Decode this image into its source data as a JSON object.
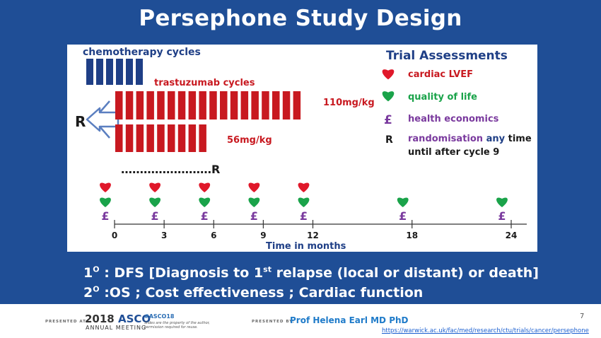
{
  "slide": {
    "title": "Persephone Study Design",
    "outcome_primary_prefix": "1",
    "outcome_primary_sup": "O",
    "outcome_primary_mid": " : DFS [Diagnosis to 1",
    "outcome_primary_sup2": "st",
    "outcome_primary_rest": " relapse (local or distant) or death]",
    "outcome_secondary_prefix": "2",
    "outcome_secondary_sup": "O",
    "outcome_secondary_rest": " :OS ; Cost effectiveness ; Cardiac function"
  },
  "diagram": {
    "chemo_label": "chemotherapy cycles",
    "chemo_cycles": 6,
    "trastuzumab_label": "trastuzumab cycles",
    "arm_long_cycles": 18,
    "arm_short_cycles": 9,
    "arm_long_label": "110mg/kg",
    "arm_short_label": "56mg/kg",
    "randomisation_symbol": "R",
    "randomisation_window": "……………………R",
    "colors": {
      "chemo": "#1f3f86",
      "trastuzumab": "#c81920",
      "heart_red": "#e0182a",
      "heart_green": "#1aa34a",
      "pound": "#7a3a9e",
      "navy": "#1f3f86"
    }
  },
  "legend": {
    "title": "Trial Assessments",
    "items": [
      {
        "icon": "heart-red-icon",
        "label": "cardiac LVEF",
        "color": "#c81920"
      },
      {
        "icon": "heart-green-icon",
        "label": "quality of life",
        "color": "#1aa34a"
      },
      {
        "icon": "pound-icon",
        "symbol": "£",
        "label": "health economics",
        "color": "#7a3a9e"
      },
      {
        "icon": "r-symbol",
        "symbol": "R",
        "label_a": "randomisation",
        "label_b": " any ",
        "label_c": "time",
        "label_line2": "until after cycle 9"
      }
    ]
  },
  "timeline": {
    "axis_label": "Time in months",
    "ticks": [
      "0",
      "3",
      "6",
      "9",
      "12",
      "18",
      "24"
    ],
    "points": [
      {
        "month": 0,
        "cardiac": true,
        "qol": true,
        "econ": true
      },
      {
        "month": 3,
        "cardiac": true,
        "qol": true,
        "econ": true
      },
      {
        "month": 6,
        "cardiac": true,
        "qol": true,
        "econ": true
      },
      {
        "month": 9,
        "cardiac": true,
        "qol": true,
        "econ": true
      },
      {
        "month": 12,
        "cardiac": true,
        "qol": true,
        "econ": true
      },
      {
        "month": 18,
        "cardiac": false,
        "qol": true,
        "econ": true
      },
      {
        "month": 24,
        "cardiac": false,
        "qol": true,
        "econ": true
      }
    ],
    "pound_symbol": "£"
  },
  "footer": {
    "presented_at": "PRESENTED AT:",
    "meeting_year": "2018",
    "meeting_name": "ASCO",
    "meeting_sub": "ANNUAL MEETING",
    "hashtag": "#ASCO18",
    "rights": "Slides are the property of the author, permission required for reuse.",
    "presented_by": "PRESENTED BY:",
    "presenter": "Prof Helena Earl MD PhD",
    "page": "7",
    "url": "https://warwick.ac.uk/fac/med/research/ctu/trials/cancer/persephone"
  }
}
